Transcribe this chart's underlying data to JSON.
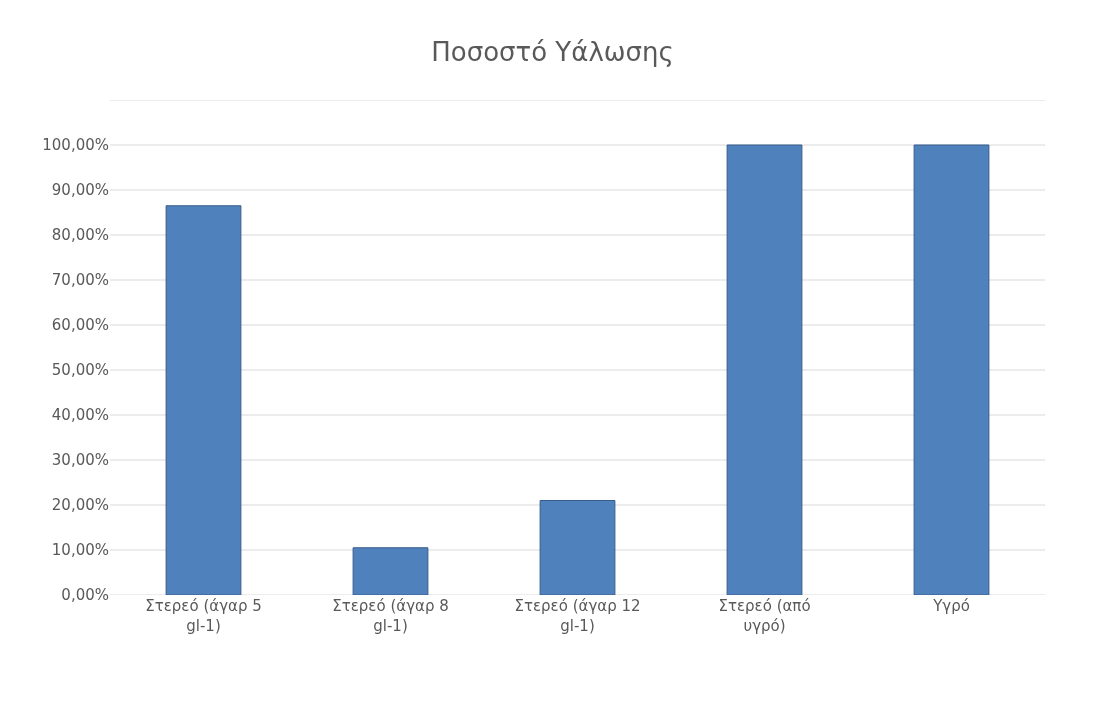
{
  "chart_data": {
    "type": "bar",
    "title": "Ποσοστό Υάλωσης",
    "categories": [
      "Στερεό (άγαρ 5 gl-1)",
      "Στερεό (άγαρ 8 gl-1)",
      "Στερεό (άγαρ 12 gl-1)",
      "Στερεό (από υγρό)",
      "Υγρό"
    ],
    "values": [
      86.5,
      10.5,
      21,
      100,
      100
    ],
    "color": "#4f81bd",
    "ylim": [
      0,
      110
    ],
    "yticks": [
      {
        "value": 0,
        "label": "0,00%"
      },
      {
        "value": 10,
        "label": "10,00%"
      },
      {
        "value": 20,
        "label": "20,00%"
      },
      {
        "value": 30,
        "label": "30,00%"
      },
      {
        "value": 40,
        "label": "40,00%"
      },
      {
        "value": 50,
        "label": "50,00%"
      },
      {
        "value": 60,
        "label": "60,00%"
      },
      {
        "value": 70,
        "label": "70,00%"
      },
      {
        "value": 80,
        "label": "80,00%"
      },
      {
        "value": 90,
        "label": "90,00%"
      },
      {
        "value": 100,
        "label": "100,00%"
      },
      {
        "value": 110,
        "label": null
      }
    ],
    "grid": true
  }
}
